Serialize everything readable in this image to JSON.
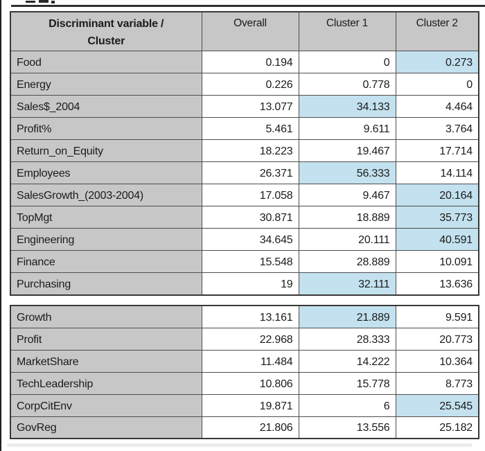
{
  "colors": {
    "page_bg": "#ffffff",
    "cell_gray": "#c6c7c6",
    "highlight_blue": "#c3e1ee",
    "border_dark": "#383838",
    "border_inner": "#4d4d4d",
    "text": "#1b1b1b"
  },
  "header": {
    "variable_label_line1": "Discriminant variable /",
    "variable_label_line2": "Cluster",
    "overall": "Overall",
    "cluster1": "Cluster 1",
    "cluster2": "Cluster 2"
  },
  "tables": [
    {
      "name": "discriminant-table-upper",
      "rows": [
        {
          "label": "Food",
          "overall": "0.194",
          "cluster1": "0",
          "cluster2": "0.273",
          "highlight": "cluster2"
        },
        {
          "label": "Energy",
          "overall": "0.226",
          "cluster1": "0.778",
          "cluster2": "0",
          "highlight": null
        },
        {
          "label": "Sales$_2004",
          "overall": "13.077",
          "cluster1": "34.133",
          "cluster2": "4.464",
          "highlight": "cluster1"
        },
        {
          "label": "Profit%",
          "overall": "5.461",
          "cluster1": "9.611",
          "cluster2": "3.764",
          "highlight": null
        },
        {
          "label": "Return_on_Equity",
          "overall": "18.223",
          "cluster1": "19.467",
          "cluster2": "17.714",
          "highlight": null
        },
        {
          "label": "Employees",
          "overall": "26.371",
          "cluster1": "56.333",
          "cluster2": "14.114",
          "highlight": "cluster1"
        },
        {
          "label": "SalesGrowth_(2003-2004)",
          "overall": "17.058",
          "cluster1": "9.467",
          "cluster2": "20.164",
          "highlight": "cluster2"
        },
        {
          "label": "TopMgt",
          "overall": "30.871",
          "cluster1": "18.889",
          "cluster2": "35.773",
          "highlight": "cluster2"
        },
        {
          "label": "Engineering",
          "overall": "34.645",
          "cluster1": "20.111",
          "cluster2": "40.591",
          "highlight": "cluster2"
        },
        {
          "label": "Finance",
          "overall": "15.548",
          "cluster1": "28.889",
          "cluster2": "10.091",
          "highlight": null
        },
        {
          "label": "Purchasing",
          "overall": "19",
          "cluster1": "32.111",
          "cluster2": "13.636",
          "highlight": "cluster1"
        }
      ]
    },
    {
      "name": "discriminant-table-lower",
      "rows": [
        {
          "label": "Growth",
          "overall": "13.161",
          "cluster1": "21.889",
          "cluster2": "9.591",
          "highlight": "cluster1"
        },
        {
          "label": "Profit",
          "overall": "22.968",
          "cluster1": "28.333",
          "cluster2": "20.773",
          "highlight": null
        },
        {
          "label": "MarketShare",
          "overall": "11.484",
          "cluster1": "14.222",
          "cluster2": "10.364",
          "highlight": null
        },
        {
          "label": "TechLeadership",
          "overall": "10.806",
          "cluster1": "15.778",
          "cluster2": "8.773",
          "highlight": null
        },
        {
          "label": "CorpCitEnv",
          "overall": "19.871",
          "cluster1": "6",
          "cluster2": "25.545",
          "highlight": "cluster2"
        },
        {
          "label": "GovReg",
          "overall": "21.806",
          "cluster1": "13.556",
          "cluster2": "25.182",
          "highlight": null
        }
      ]
    }
  ],
  "chart_data": {
    "type": "table",
    "columns": [
      "Discriminant variable / Cluster",
      "Overall",
      "Cluster 1",
      "Cluster 2"
    ],
    "sections": [
      {
        "rows": [
          [
            "Food",
            0.194,
            0,
            0.273
          ],
          [
            "Energy",
            0.226,
            0.778,
            0
          ],
          [
            "Sales$_2004",
            13.077,
            34.133,
            4.464
          ],
          [
            "Profit%",
            5.461,
            9.611,
            3.764
          ],
          [
            "Return_on_Equity",
            18.223,
            19.467,
            17.714
          ],
          [
            "Employees",
            26.371,
            56.333,
            14.114
          ],
          [
            "SalesGrowth_(2003-2004)",
            17.058,
            9.467,
            20.164
          ],
          [
            "TopMgt",
            30.871,
            18.889,
            35.773
          ],
          [
            "Engineering",
            34.645,
            20.111,
            40.591
          ],
          [
            "Finance",
            15.548,
            28.889,
            10.091
          ],
          [
            "Purchasing",
            19,
            32.111,
            13.636
          ]
        ]
      },
      {
        "rows": [
          [
            "Growth",
            13.161,
            21.889,
            9.591
          ],
          [
            "Profit",
            22.968,
            28.333,
            20.773
          ],
          [
            "MarketShare",
            11.484,
            14.222,
            10.364
          ],
          [
            "TechLeadership",
            10.806,
            15.778,
            8.773
          ],
          [
            "CorpCitEnv",
            19.871,
            6,
            25.545
          ],
          [
            "GovReg",
            21.806,
            13.556,
            25.182
          ]
        ]
      }
    ],
    "highlighted_cells": [
      {
        "row": "Food",
        "column": "Cluster 2"
      },
      {
        "row": "Sales$_2004",
        "column": "Cluster 1"
      },
      {
        "row": "Employees",
        "column": "Cluster 1"
      },
      {
        "row": "SalesGrowth_(2003-2004)",
        "column": "Cluster 2"
      },
      {
        "row": "TopMgt",
        "column": "Cluster 2"
      },
      {
        "row": "Engineering",
        "column": "Cluster 2"
      },
      {
        "row": "Purchasing",
        "column": "Cluster 1"
      },
      {
        "row": "Growth",
        "column": "Cluster 1"
      },
      {
        "row": "CorpCitEnv",
        "column": "Cluster 2"
      }
    ],
    "highlight_style": "light blue cell background",
    "layout": "two stacked bordered tables sharing column geometry; header only on upper table"
  }
}
